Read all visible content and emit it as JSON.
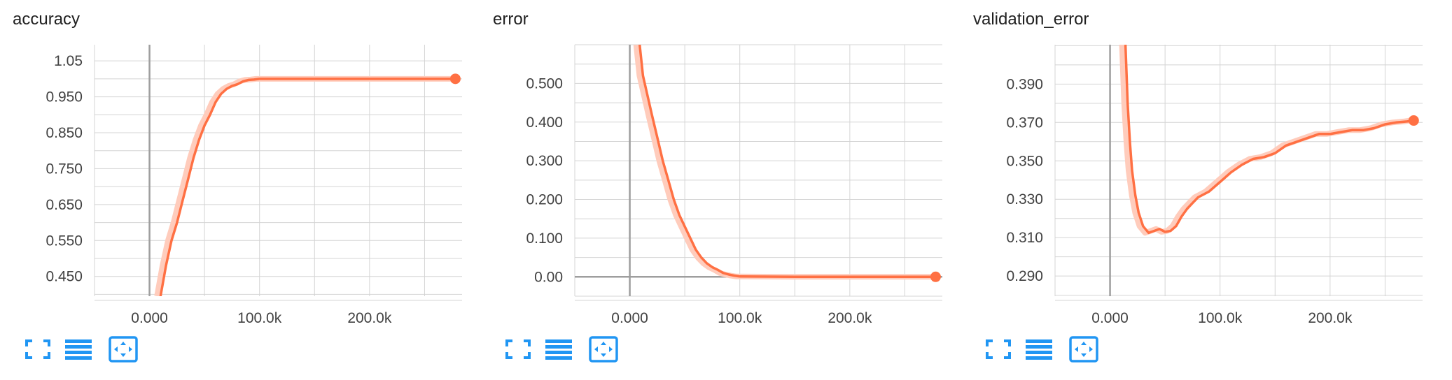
{
  "colors": {
    "line": "#ff7043",
    "line_raw": "#ffccbc",
    "grid": "#d4d4d4",
    "axis": "#9e9e9e",
    "icon": "#2196f3"
  },
  "icons": [
    "fullscreen-icon",
    "list-icon",
    "fit-domain-icon"
  ],
  "chart_data": [
    {
      "type": "line",
      "title": "accuracy",
      "xlabel": "",
      "ylabel": "",
      "x_ticks": [
        "0.000",
        "100.0k",
        "200.0k"
      ],
      "y_ticks": [
        "1.05",
        "0.950",
        "0.850",
        "0.750",
        "0.650",
        "0.550",
        "0.450"
      ],
      "xlim": [
        -50000,
        300000
      ],
      "ylim": [
        0.395,
        1.095
      ],
      "grid": true,
      "series": [
        {
          "values_x": [
            10000,
            15000,
            20000,
            25000,
            30000,
            35000,
            40000,
            45000,
            50000,
            55000,
            60000,
            65000,
            70000,
            75000,
            80000,
            85000,
            90000,
            95000,
            100000,
            150000,
            200000,
            250000,
            278000
          ],
          "values_y": [
            0.395,
            0.48,
            0.55,
            0.6,
            0.66,
            0.72,
            0.78,
            0.83,
            0.87,
            0.9,
            0.935,
            0.958,
            0.972,
            0.98,
            0.985,
            0.993,
            0.997,
            0.998,
            1.0,
            1.0,
            1.0,
            1.0,
            1.0
          ]
        }
      ]
    },
    {
      "type": "line",
      "title": "error",
      "xlabel": "",
      "ylabel": "",
      "x_ticks": [
        "0.000",
        "100.0k",
        "200.0k"
      ],
      "y_ticks": [
        "0.500",
        "0.400",
        "0.300",
        "0.200",
        "0.100",
        "0.00"
      ],
      "xlim": [
        -50000,
        300000
      ],
      "ylim": [
        -0.05,
        0.6
      ],
      "grid": true,
      "series": [
        {
          "values_x": [
            9000,
            12000,
            16000,
            20000,
            25000,
            30000,
            35000,
            40000,
            45000,
            50000,
            55000,
            60000,
            65000,
            70000,
            75000,
            80000,
            85000,
            90000,
            95000,
            100000,
            150000,
            200000,
            250000,
            278000
          ],
          "values_y": [
            0.6,
            0.52,
            0.47,
            0.42,
            0.36,
            0.3,
            0.25,
            0.2,
            0.16,
            0.13,
            0.1,
            0.07,
            0.05,
            0.035,
            0.025,
            0.018,
            0.01,
            0.006,
            0.003,
            0.001,
            0.0,
            0.0,
            0.0,
            0.0
          ]
        }
      ]
    },
    {
      "type": "line",
      "title": "validation_error",
      "xlabel": "",
      "ylabel": "",
      "x_ticks": [
        "0.000",
        "100.0k",
        "200.0k"
      ],
      "y_ticks": [
        "0.390",
        "0.370",
        "0.350",
        "0.330",
        "0.310",
        "0.290"
      ],
      "xlim": [
        -50000,
        300000
      ],
      "ylim": [
        0.2795,
        0.4105
      ],
      "grid": true,
      "series": [
        {
          "values_x": [
            14000,
            16000,
            18000,
            20000,
            23000,
            26000,
            30000,
            35000,
            40000,
            45000,
            50000,
            55000,
            60000,
            65000,
            70000,
            75000,
            80000,
            90000,
            100000,
            110000,
            120000,
            130000,
            140000,
            150000,
            160000,
            170000,
            180000,
            190000,
            200000,
            210000,
            220000,
            230000,
            240000,
            250000,
            260000,
            270000,
            276000
          ],
          "values_y": [
            0.4105,
            0.38,
            0.36,
            0.345,
            0.332,
            0.323,
            0.316,
            0.3125,
            0.3135,
            0.3145,
            0.313,
            0.3135,
            0.316,
            0.321,
            0.325,
            0.328,
            0.331,
            0.334,
            0.339,
            0.344,
            0.348,
            0.351,
            0.352,
            0.354,
            0.358,
            0.36,
            0.362,
            0.364,
            0.364,
            0.365,
            0.366,
            0.366,
            0.367,
            0.369,
            0.37,
            0.3705,
            0.371
          ]
        }
      ]
    }
  ]
}
